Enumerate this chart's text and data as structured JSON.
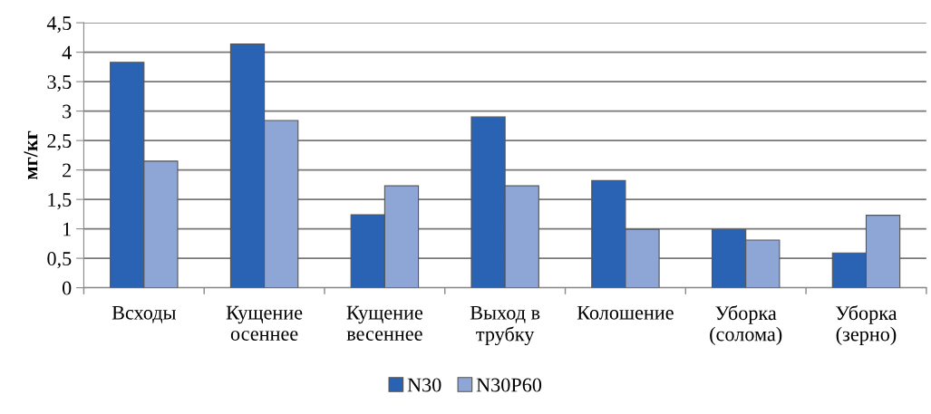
{
  "chart_data": {
    "type": "bar",
    "ylabel": "мг/кг",
    "categories": [
      "Всходы",
      "Кущение\nосеннее",
      "Кущение\nвесеннее",
      "Выход в\nтрубку",
      "Колошение",
      "Уборка\n(солома)",
      "Уборка\n(зерно)"
    ],
    "series": [
      {
        "name": "N30",
        "color": "#2a62b4",
        "values": [
          3.83,
          4.14,
          1.24,
          2.9,
          1.82,
          0.99,
          0.59
        ]
      },
      {
        "name": "N30P60",
        "color": "#8ea6d6",
        "values": [
          2.15,
          2.84,
          1.73,
          1.73,
          0.99,
          0.81,
          1.23
        ]
      }
    ],
    "ylim": [
      0,
      4.5
    ],
    "yticks": [
      {
        "value": 0,
        "label": "0"
      },
      {
        "value": 0.5,
        "label": "0,5"
      },
      {
        "value": 1,
        "label": "1"
      },
      {
        "value": 1.5,
        "label": "1,5"
      },
      {
        "value": 2,
        "label": "2"
      },
      {
        "value": 2.5,
        "label": "2,5"
      },
      {
        "value": 3,
        "label": "3"
      },
      {
        "value": 3.5,
        "label": "3,5"
      },
      {
        "value": 4,
        "label": "4"
      },
      {
        "value": 4.5,
        "label": "4,5"
      }
    ],
    "grid": "y",
    "legend": "bottom"
  }
}
